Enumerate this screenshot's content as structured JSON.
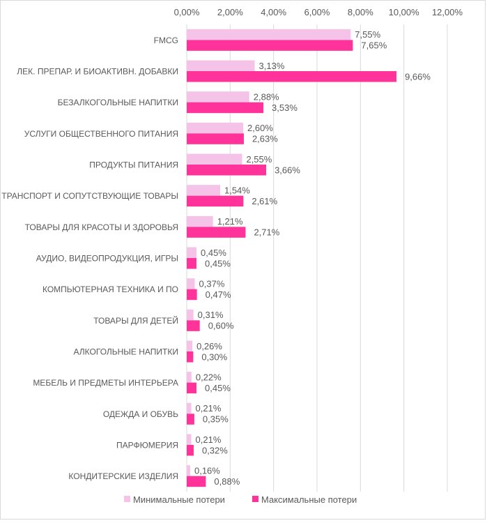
{
  "chart_data": {
    "type": "bar",
    "orientation": "horizontal",
    "title": "",
    "xlabel": "",
    "ylabel": "",
    "xlim": [
      0,
      12
    ],
    "x_ticks": [
      "0,00%",
      "2,00%",
      "4,00%",
      "6,00%",
      "8,00%",
      "10,00%",
      "12,00%"
    ],
    "x_axis_position": "top",
    "grid": true,
    "legend_position": "bottom",
    "categories": [
      "FMCG",
      "ЛЕК. ПРЕПАР. И БИОАКТИВН. ДОБАВКИ",
      "БЕЗАЛКОГОЛЬНЫЕ НАПИТКИ",
      "УСЛУГИ ОБЩЕСТВЕННОГО ПИТАНИЯ",
      "ПРОДУКТЫ ПИТАНИЯ",
      "ТРАНСПОРТ И СОПУТСТВУЮЩИЕ ТОВАРЫ",
      "ТОВАРЫ ДЛЯ КРАСОТЫ И ЗДОРОВЬЯ",
      "АУДИО, ВИДЕОПРОДУКЦИЯ, ИГРЫ",
      "КОМПЬЮТЕРНАЯ ТЕХНИКА И ПО",
      "ТОВАРЫ ДЛЯ ДЕТЕЙ",
      "АЛКОГОЛЬНЫЕ НАПИТКИ",
      "МЕБЕЛЬ И ПРЕДМЕТЫ ИНТЕРЬЕРА",
      "ОДЕЖДА И ОБУВЬ",
      "ПАРФЮМЕРИЯ",
      "КОНДИТЕРСКИЕ ИЗДЕЛИЯ"
    ],
    "series": [
      {
        "name": "Минимальные потери",
        "color": "#f6c3e8",
        "values": [
          7.55,
          3.13,
          2.88,
          2.6,
          2.55,
          1.54,
          1.21,
          0.45,
          0.37,
          0.31,
          0.26,
          0.22,
          0.21,
          0.21,
          0.16
        ],
        "labels": [
          "7,55%",
          "3,13%",
          "2,88%",
          "2,60%",
          "2,55%",
          "1,54%",
          "1,21%",
          "0,45%",
          "0,37%",
          "0,31%",
          "0,26%",
          "0,22%",
          "0,21%",
          "0,21%",
          "0,16%"
        ]
      },
      {
        "name": "Максимальные потери",
        "color": "#ff3399",
        "values": [
          7.65,
          9.66,
          3.53,
          2.63,
          3.66,
          2.61,
          2.71,
          0.45,
          0.47,
          0.6,
          0.3,
          0.45,
          0.35,
          0.32,
          0.88
        ],
        "labels": [
          "7,65%",
          "9,66%",
          "3,53%",
          "2,63%",
          "3,66%",
          "2,61%",
          "2,71%",
          "0,45%",
          "0,47%",
          "0,60%",
          "0,30%",
          "0,45%",
          "0,35%",
          "0,32%",
          "0,88%"
        ]
      }
    ]
  }
}
